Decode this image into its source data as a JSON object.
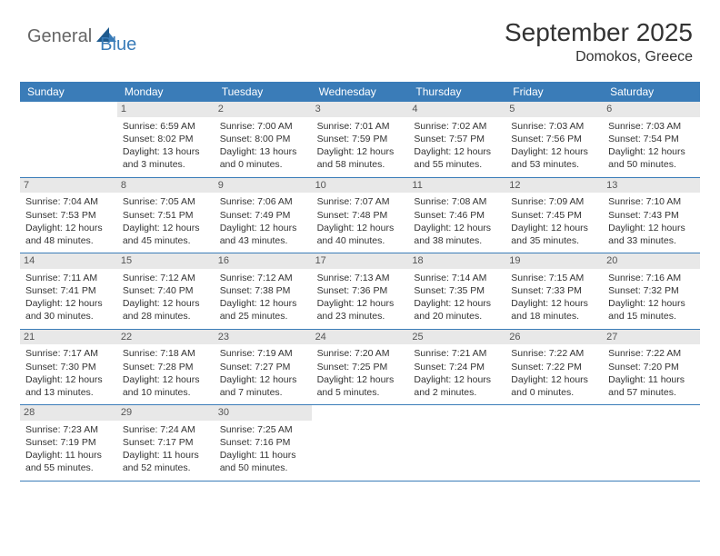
{
  "logo": {
    "part1": "General",
    "part2": "Blue"
  },
  "title": "September 2025",
  "location": "Domokos, Greece",
  "colors": {
    "header_bg": "#3a7cb8",
    "daynum_bg": "#e8e8e8",
    "text": "#333333",
    "logo_gray": "#666666",
    "logo_blue": "#3a7cb8"
  },
  "dayNames": [
    "Sunday",
    "Monday",
    "Tuesday",
    "Wednesday",
    "Thursday",
    "Friday",
    "Saturday"
  ],
  "weeks": [
    [
      null,
      {
        "n": "1",
        "sr": "6:59 AM",
        "ss": "8:02 PM",
        "dl": "13 hours and 3 minutes."
      },
      {
        "n": "2",
        "sr": "7:00 AM",
        "ss": "8:00 PM",
        "dl": "13 hours and 0 minutes."
      },
      {
        "n": "3",
        "sr": "7:01 AM",
        "ss": "7:59 PM",
        "dl": "12 hours and 58 minutes."
      },
      {
        "n": "4",
        "sr": "7:02 AM",
        "ss": "7:57 PM",
        "dl": "12 hours and 55 minutes."
      },
      {
        "n": "5",
        "sr": "7:03 AM",
        "ss": "7:56 PM",
        "dl": "12 hours and 53 minutes."
      },
      {
        "n": "6",
        "sr": "7:03 AM",
        "ss": "7:54 PM",
        "dl": "12 hours and 50 minutes."
      }
    ],
    [
      {
        "n": "7",
        "sr": "7:04 AM",
        "ss": "7:53 PM",
        "dl": "12 hours and 48 minutes."
      },
      {
        "n": "8",
        "sr": "7:05 AM",
        "ss": "7:51 PM",
        "dl": "12 hours and 45 minutes."
      },
      {
        "n": "9",
        "sr": "7:06 AM",
        "ss": "7:49 PM",
        "dl": "12 hours and 43 minutes."
      },
      {
        "n": "10",
        "sr": "7:07 AM",
        "ss": "7:48 PM",
        "dl": "12 hours and 40 minutes."
      },
      {
        "n": "11",
        "sr": "7:08 AM",
        "ss": "7:46 PM",
        "dl": "12 hours and 38 minutes."
      },
      {
        "n": "12",
        "sr": "7:09 AM",
        "ss": "7:45 PM",
        "dl": "12 hours and 35 minutes."
      },
      {
        "n": "13",
        "sr": "7:10 AM",
        "ss": "7:43 PM",
        "dl": "12 hours and 33 minutes."
      }
    ],
    [
      {
        "n": "14",
        "sr": "7:11 AM",
        "ss": "7:41 PM",
        "dl": "12 hours and 30 minutes."
      },
      {
        "n": "15",
        "sr": "7:12 AM",
        "ss": "7:40 PM",
        "dl": "12 hours and 28 minutes."
      },
      {
        "n": "16",
        "sr": "7:12 AM",
        "ss": "7:38 PM",
        "dl": "12 hours and 25 minutes."
      },
      {
        "n": "17",
        "sr": "7:13 AM",
        "ss": "7:36 PM",
        "dl": "12 hours and 23 minutes."
      },
      {
        "n": "18",
        "sr": "7:14 AM",
        "ss": "7:35 PM",
        "dl": "12 hours and 20 minutes."
      },
      {
        "n": "19",
        "sr": "7:15 AM",
        "ss": "7:33 PM",
        "dl": "12 hours and 18 minutes."
      },
      {
        "n": "20",
        "sr": "7:16 AM",
        "ss": "7:32 PM",
        "dl": "12 hours and 15 minutes."
      }
    ],
    [
      {
        "n": "21",
        "sr": "7:17 AM",
        "ss": "7:30 PM",
        "dl": "12 hours and 13 minutes."
      },
      {
        "n": "22",
        "sr": "7:18 AM",
        "ss": "7:28 PM",
        "dl": "12 hours and 10 minutes."
      },
      {
        "n": "23",
        "sr": "7:19 AM",
        "ss": "7:27 PM",
        "dl": "12 hours and 7 minutes."
      },
      {
        "n": "24",
        "sr": "7:20 AM",
        "ss": "7:25 PM",
        "dl": "12 hours and 5 minutes."
      },
      {
        "n": "25",
        "sr": "7:21 AM",
        "ss": "7:24 PM",
        "dl": "12 hours and 2 minutes."
      },
      {
        "n": "26",
        "sr": "7:22 AM",
        "ss": "7:22 PM",
        "dl": "12 hours and 0 minutes."
      },
      {
        "n": "27",
        "sr": "7:22 AM",
        "ss": "7:20 PM",
        "dl": "11 hours and 57 minutes."
      }
    ],
    [
      {
        "n": "28",
        "sr": "7:23 AM",
        "ss": "7:19 PM",
        "dl": "11 hours and 55 minutes."
      },
      {
        "n": "29",
        "sr": "7:24 AM",
        "ss": "7:17 PM",
        "dl": "11 hours and 52 minutes."
      },
      {
        "n": "30",
        "sr": "7:25 AM",
        "ss": "7:16 PM",
        "dl": "11 hours and 50 minutes."
      },
      null,
      null,
      null,
      null
    ]
  ],
  "labels": {
    "sunrise": "Sunrise:",
    "sunset": "Sunset:",
    "daylight": "Daylight:"
  }
}
